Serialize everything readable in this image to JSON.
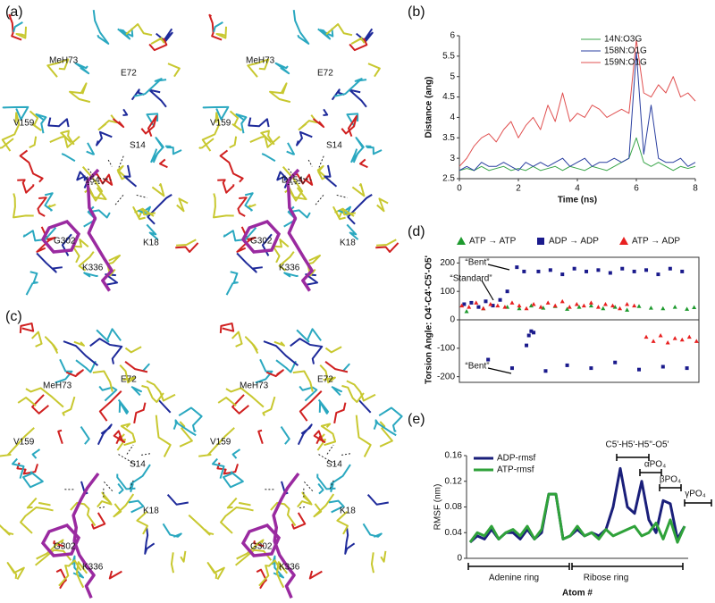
{
  "figure": {
    "panels": [
      "(a)",
      "(b)",
      "(c)",
      "(d)",
      "(e)"
    ],
    "structures": [
      {
        "labels": [
          "MeH73",
          "E72",
          "V159",
          "S14",
          "154",
          "G302",
          "K18",
          "K336"
        ]
      },
      {
        "labels": [
          "MeH73",
          "E72",
          "V159",
          "S14",
          "D154",
          "G302",
          "K18",
          "K336"
        ]
      },
      {
        "labels": [
          "MeH73",
          "E72",
          "V159",
          "S14",
          "G302",
          "K18",
          "K336"
        ]
      },
      {
        "labels": [
          "MeH73",
          "E72",
          "V159",
          "S14",
          "G302",
          "K18",
          "K336"
        ]
      }
    ]
  },
  "chart_data": [
    {
      "type": "line",
      "x_label": "Time (ns)",
      "y_label": "Distance (ang)",
      "x": [
        0,
        0.25,
        0.5,
        0.75,
        1,
        1.25,
        1.5,
        1.75,
        2,
        2.25,
        2.5,
        2.75,
        3,
        3.25,
        3.5,
        3.75,
        4,
        4.25,
        4.5,
        4.75,
        5,
        5.25,
        5.5,
        5.75,
        6,
        6.25,
        6.5,
        6.75,
        7,
        7.25,
        7.5,
        7.75,
        8
      ],
      "xlim": [
        0,
        8
      ],
      "xticks": [
        0,
        2,
        4,
        6,
        8
      ],
      "ylim": [
        2.5,
        6
      ],
      "yticks": [
        2.5,
        3,
        3.5,
        4,
        4.5,
        5,
        5.5,
        6
      ],
      "legend": "top-right",
      "series": [
        {
          "name": "14N:O3G",
          "color": "#3aa64a",
          "values": [
            2.7,
            2.75,
            2.7,
            2.8,
            2.7,
            2.75,
            2.8,
            2.7,
            2.75,
            2.7,
            2.8,
            2.7,
            2.75,
            2.8,
            2.7,
            2.8,
            2.75,
            2.7,
            2.8,
            2.75,
            2.7,
            2.8,
            2.9,
            3.0,
            3.5,
            2.9,
            2.8,
            2.9,
            2.8,
            2.7,
            2.8,
            2.75,
            2.8
          ]
        },
        {
          "name": "158N:O1G",
          "color": "#2a3fa0",
          "values": [
            2.7,
            2.8,
            2.7,
            2.9,
            2.8,
            2.8,
            2.9,
            2.8,
            2.7,
            2.9,
            2.8,
            2.9,
            2.8,
            2.9,
            3.0,
            2.8,
            2.9,
            3.0,
            2.8,
            2.9,
            2.9,
            3.0,
            2.9,
            3.0,
            5.6,
            3.1,
            4.3,
            3.0,
            2.9,
            2.9,
            3.0,
            2.8,
            2.9
          ]
        },
        {
          "name": "159N:O1G",
          "color": "#e05050",
          "values": [
            2.8,
            3.0,
            3.3,
            3.5,
            3.6,
            3.4,
            3.7,
            3.9,
            3.5,
            3.8,
            4.0,
            3.7,
            4.3,
            3.9,
            4.6,
            3.9,
            4.1,
            4.0,
            4.3,
            4.2,
            4.0,
            4.1,
            4.2,
            4.1,
            5.9,
            4.6,
            4.5,
            4.8,
            4.6,
            5.0,
            4.5,
            4.6,
            4.4
          ]
        }
      ]
    },
    {
      "type": "scatter",
      "y_label": "Torsion Angle: O4'-C4'-C5'-O5'",
      "xlim": [
        0,
        100
      ],
      "ylim": [
        -220,
        220
      ],
      "yticks": [
        -200,
        -100,
        0,
        100,
        200
      ],
      "legend": "top",
      "annotations": [
        "“Bent”",
        "“Standard”",
        "“Bent”"
      ],
      "series": [
        {
          "name": "ATP → ATP",
          "color": "#1e9a2e",
          "marker": "triangle",
          "x": [
            20,
            25,
            30,
            35,
            40,
            45,
            50,
            55,
            60,
            65,
            70,
            75,
            80,
            85,
            90,
            95,
            98,
            3,
            10
          ],
          "values": [
            45,
            40,
            50,
            42,
            48,
            38,
            45,
            50,
            40,
            45,
            35,
            48,
            42,
            40,
            45,
            38,
            44,
            30,
            40
          ]
        },
        {
          "name": "ADP → ADP",
          "color": "#1a1a8c",
          "marker": "square",
          "x": [
            2,
            5,
            8,
            11,
            14,
            17,
            20,
            24,
            27,
            29,
            31,
            22,
            30,
            33,
            38,
            43,
            48,
            53,
            58,
            63,
            68,
            73,
            78,
            83,
            88,
            93,
            36,
            45,
            55,
            65,
            75,
            85,
            95,
            12,
            28
          ],
          "values": [
            55,
            60,
            45,
            65,
            50,
            70,
            100,
            185,
            170,
            -55,
            -45,
            -170,
            -40,
            170,
            175,
            160,
            180,
            170,
            175,
            165,
            180,
            170,
            175,
            160,
            180,
            170,
            -180,
            -160,
            -170,
            -150,
            -175,
            -165,
            -170,
            -140,
            -90
          ]
        },
        {
          "name": "ATP → ADP",
          "color": "#e82020",
          "marker": "triangle",
          "x": [
            1,
            4,
            7,
            10,
            13,
            16,
            19,
            22,
            25,
            28,
            31,
            34,
            37,
            40,
            43,
            46,
            49,
            52,
            55,
            58,
            61,
            64,
            67,
            70,
            73,
            78,
            81,
            84,
            87,
            90,
            93,
            96,
            99
          ],
          "values": [
            50,
            45,
            60,
            40,
            55,
            50,
            45,
            60,
            50,
            40,
            55,
            45,
            60,
            50,
            65,
            45,
            55,
            50,
            60,
            45,
            55,
            50,
            40,
            55,
            50,
            -60,
            -75,
            -55,
            -80,
            -65,
            -70,
            -60,
            -75
          ]
        }
      ]
    },
    {
      "type": "line",
      "x_label": "Atom #",
      "y_label": "RMSF (nm)",
      "categories": [
        null,
        null,
        null,
        null,
        null,
        null,
        null,
        null,
        null,
        null,
        null,
        null,
        null,
        null,
        null,
        null,
        null,
        null,
        null,
        null,
        null,
        null,
        null,
        null,
        null,
        null,
        null,
        null,
        null,
        null,
        null
      ],
      "ylim": [
        0,
        0.16
      ],
      "yticks": [
        0,
        0.04,
        0.08,
        0.12,
        0.16
      ],
      "legend": "top-left",
      "annotations": [
        "C5'-H5'-H5\"-O5'",
        "αPO₄",
        "βPO₄",
        "γPO₄",
        "Adenine ring",
        "Ribose ring"
      ],
      "series": [
        {
          "name": "ADP-rmsf",
          "color": "#1a1f7a",
          "values": [
            0.025,
            0.035,
            0.03,
            0.045,
            0.03,
            0.04,
            0.04,
            0.03,
            0.045,
            0.03,
            0.04,
            0.1,
            0.1,
            0.03,
            0.035,
            0.045,
            0.035,
            0.04,
            0.035,
            0.045,
            0.08,
            0.14,
            0.08,
            0.07,
            0.12,
            0.06,
            0.04,
            0.09,
            0.085,
            0.03,
            0.05
          ]
        },
        {
          "name": "ATP-rmsf",
          "color": "#2fa23a",
          "values": [
            0.025,
            0.04,
            0.035,
            0.05,
            0.03,
            0.04,
            0.045,
            0.035,
            0.05,
            0.03,
            0.045,
            0.1,
            0.1,
            0.03,
            0.035,
            0.05,
            0.035,
            0.04,
            0.03,
            0.045,
            0.035,
            0.04,
            0.045,
            0.05,
            0.035,
            0.04,
            0.055,
            0.03,
            0.06,
            0.025,
            0.05
          ]
        }
      ]
    }
  ]
}
